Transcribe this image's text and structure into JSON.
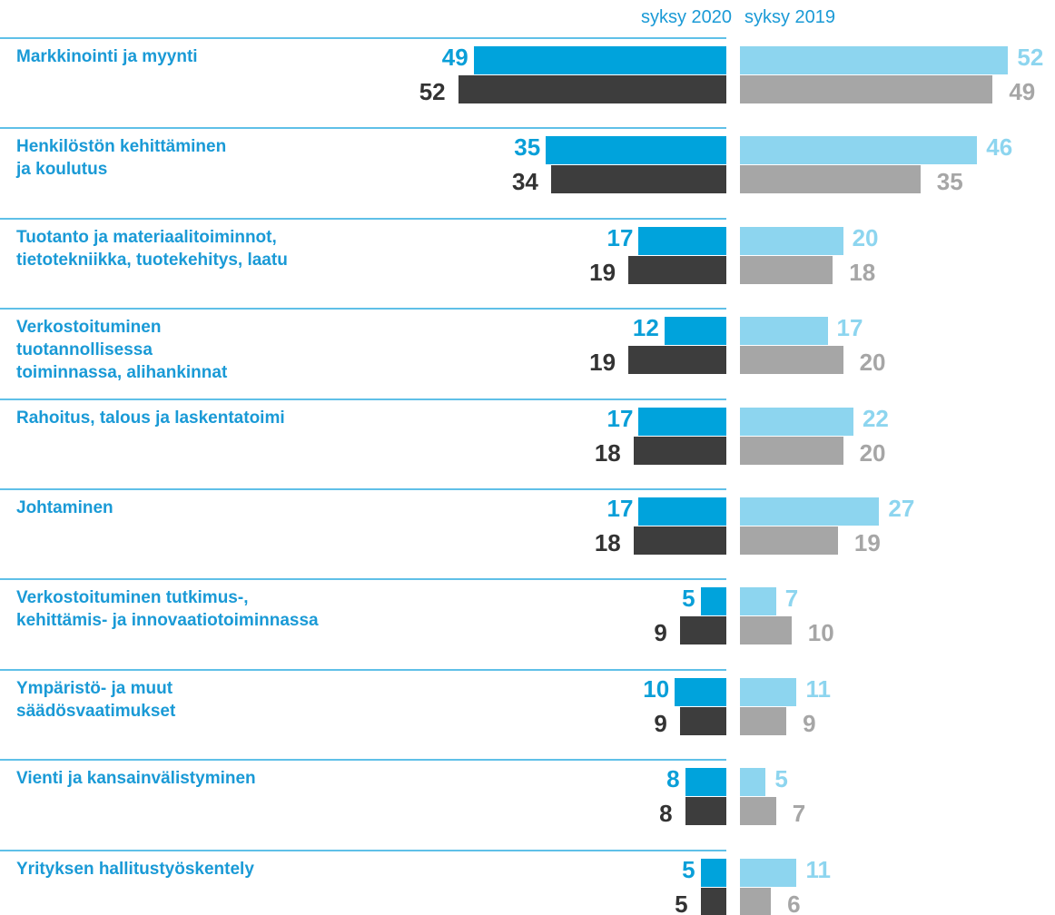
{
  "chart_data": {
    "type": "butterfly",
    "categories": [
      "Markkinointi ja myynti",
      "Henkilöstön kehittäminen\nja koulutus",
      "Tuotanto ja materiaalitoiminnot,\ntietotekniikka, tuotekehitys, laatu",
      "Verkostoituminen\ntuotannollisessa\ntoiminnassa, alihankinnat",
      "Rahoitus, talous ja laskentatoimi",
      "Johtaminen",
      "Verkostoituminen tutkimus-,\nkehittämis- ja innovaatiotoiminnassa",
      "Ympäristö- ja muut\nsäädösvaatimukset",
      "Vienti ja kansainvälistyminen",
      "Yrityksen hallitustyöskentely"
    ],
    "panels": [
      {
        "title": "syksy 2020",
        "side": "left",
        "series": [
          {
            "color": "#00a3dc",
            "label_color": "#0a9fd8",
            "values": [
              49,
              35,
              17,
              12,
              17,
              17,
              5,
              10,
              8,
              5
            ]
          },
          {
            "color": "#3d3d3d",
            "label_color": "#333333",
            "values": [
              52,
              34,
              19,
              19,
              18,
              18,
              9,
              9,
              8,
              5
            ]
          }
        ]
      },
      {
        "title": "syksy 2019",
        "side": "right",
        "series": [
          {
            "color": "#8dd5ef",
            "label_color": "#8dd5ef",
            "values": [
              52,
              46,
              20,
              17,
              22,
              27,
              7,
              11,
              5,
              11
            ]
          },
          {
            "color": "#a6a6a6",
            "label_color": "#a6a6a6",
            "values": [
              49,
              35,
              18,
              20,
              20,
              19,
              10,
              9,
              7,
              6
            ]
          }
        ]
      }
    ]
  }
}
